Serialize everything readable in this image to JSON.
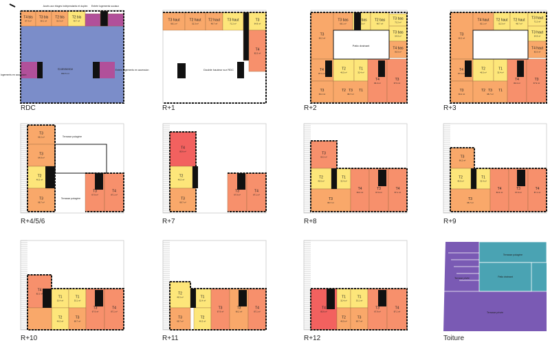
{
  "colors": {
    "orange": "#f9a86a",
    "salmon": "#f7906c",
    "yellow": "#fde67a",
    "red": "#f2615f",
    "blue": "#7b8dc9",
    "magenta": "#b1509a",
    "black": "#111111",
    "purple": "#7a5ab4",
    "teal": "#4aa3b3",
    "frame": "#c8c8c8"
  },
  "levels": [
    {
      "id": "rdc",
      "label": "RDC"
    },
    {
      "id": "r1",
      "label": "R+1"
    },
    {
      "id": "r2",
      "label": "R+2"
    },
    {
      "id": "r3",
      "label": "R+3"
    },
    {
      "id": "r456",
      "label": "R+4/5/6"
    },
    {
      "id": "r7",
      "label": "R+7"
    },
    {
      "id": "r8",
      "label": "R+8"
    },
    {
      "id": "r9",
      "label": "R+9"
    },
    {
      "id": "r10",
      "label": "R+10"
    },
    {
      "id": "r11",
      "label": "R+11"
    },
    {
      "id": "r12",
      "label": "R+12"
    },
    {
      "id": "toit",
      "label": "Toiture"
    }
  ],
  "rdc": {
    "annotations": {
      "top": "Accès aux étages indépendants et duplex",
      "top_right": "Entrée logements sociaux",
      "left": "Entrée logements en accession",
      "right": "Entrée logements en accession",
      "center": "Commerce",
      "center_area": "802.5 m²"
    },
    "units": [
      {
        "type": "T4 bis",
        "area": "87.4 m²"
      },
      {
        "type": "T3 bis",
        "area": "68.1 m²"
      },
      {
        "type": "T2 bis",
        "area": "52.3 m²"
      },
      {
        "type": "T2 bis",
        "area": "48.7 m²"
      }
    ]
  },
  "r1": {
    "center": "Double hauteur sur RDC",
    "units": [
      {
        "type": "T3 haut",
        "area": "68.1 m²"
      },
      {
        "type": "T2 haut",
        "area": "52.3 m²"
      },
      {
        "type": "T2 haut",
        "area": "48.7 m²"
      },
      {
        "type": "T3 haut",
        "area": "71.2 m²"
      },
      {
        "type": "T3",
        "area": "64.8 m²"
      },
      {
        "type": "T4",
        "area": "82.5 m²"
      }
    ]
  },
  "r2": {
    "center": "Patio drainant",
    "units": [
      {
        "type": "T3",
        "area": "66.2 m²"
      },
      {
        "type": "T3 bas",
        "area": "68.1 m²"
      },
      {
        "type": "T2 bas",
        "area": "52.3 m²"
      },
      {
        "type": "T2 bas",
        "area": "48.7 m²"
      },
      {
        "type": "T3 bas",
        "area": "71.2 m²"
      },
      {
        "type": "T3 bas",
        "area": "64.8 m²"
      },
      {
        "type": "T4 bas",
        "area": "82.5 m²"
      },
      {
        "type": "T3",
        "area": "66.2 m²"
      },
      {
        "type": "T2",
        "area": "46.5 m²"
      },
      {
        "type": "T1",
        "area": "32.4 m²"
      },
      {
        "type": "T3",
        "area": "68.7 m²"
      },
      {
        "type": "T4",
        "area": "84.3 m²"
      },
      {
        "type": "T3",
        "area": "67.9 m²"
      },
      {
        "type": "T4",
        "area": "87.1 m²"
      },
      {
        "type": "T2",
        "area": "49.3 m²"
      },
      {
        "type": "T1",
        "area": "33.1 m²"
      }
    ]
  },
  "r3": {
    "units": [
      {
        "type": "T3",
        "area": "66.2 m²"
      },
      {
        "type": "T4 haut",
        "area": "82.1 m²"
      },
      {
        "type": "T2 haut",
        "area": "52.3 m²"
      },
      {
        "type": "T2 haut",
        "area": "48.7 m²"
      },
      {
        "type": "T3 haut",
        "area": "71.2 m²"
      },
      {
        "type": "T3 haut",
        "area": "64.8 m²"
      },
      {
        "type": "T4 haut",
        "area": "82.5 m²"
      },
      {
        "type": "T3",
        "area": "66.2 m²"
      },
      {
        "type": "T2",
        "area": "46.5 m²"
      },
      {
        "type": "T1",
        "area": "32.4 m²"
      },
      {
        "type": "T3",
        "area": "68.7 m²"
      },
      {
        "type": "T4",
        "area": "84.3 m²"
      },
      {
        "type": "T3",
        "area": "67.9 m²"
      },
      {
        "type": "T4",
        "area": "87.1 m²"
      },
      {
        "type": "T2",
        "area": "49.3 m²"
      },
      {
        "type": "T1",
        "area": "33.1 m²"
      }
    ]
  },
  "r456": {
    "terrace_top": "Terrasse potagère",
    "terrace_mid": "Terrasse potagère",
    "units": [
      {
        "type": "T3",
        "area": "66.2 m²"
      },
      {
        "type": "T3",
        "area": "64.8 m²"
      },
      {
        "type": "T2",
        "area": "46.5 m²"
      },
      {
        "type": "T3",
        "area": "68.7 m²"
      },
      {
        "type": "T3",
        "area": "67.9 m²"
      },
      {
        "type": "T4",
        "area": "87.1 m²"
      }
    ]
  },
  "r7": {
    "units": [
      {
        "type": "T4",
        "area": "85.6 m²"
      },
      {
        "type": "T2",
        "area": "46.5 m²"
      },
      {
        "type": "T3",
        "area": "68.7 m²"
      },
      {
        "type": "T3",
        "area": "67.9 m²"
      },
      {
        "type": "T4",
        "area": "87.1 m²"
      }
    ]
  },
  "r8": {
    "units": [
      {
        "type": "T3",
        "area": "66.2 m²"
      },
      {
        "type": "T2",
        "area": "46.5 m²"
      },
      {
        "type": "T1",
        "area": "32.4 m²"
      },
      {
        "type": "T3",
        "area": "68.7 m²"
      },
      {
        "type": "T4",
        "area": "84.3 m²"
      },
      {
        "type": "T3",
        "area": "67.9 m²"
      },
      {
        "type": "T4",
        "area": "87.1 m²"
      }
    ]
  },
  "r9": {
    "units": [
      {
        "type": "T3",
        "area": "66.2 m²"
      },
      {
        "type": "T2",
        "area": "46.5 m²"
      },
      {
        "type": "T1",
        "area": "32.4 m²"
      },
      {
        "type": "T3",
        "area": "68.7 m²"
      },
      {
        "type": "T4",
        "area": "84.3 m²"
      },
      {
        "type": "T3",
        "area": "67.9 m²"
      },
      {
        "type": "T4",
        "area": "87.1 m²"
      }
    ]
  },
  "r10": {
    "units": [
      {
        "type": "T4",
        "area": "82.2 m²"
      },
      {
        "type": "T1",
        "area": "32.4 m²"
      },
      {
        "type": "T2",
        "area": "46.5 m²"
      },
      {
        "type": "T1",
        "area": "33.1 m²"
      },
      {
        "type": "T3",
        "area": "68.7 m²"
      },
      {
        "type": "T3",
        "area": "67.9 m²"
      },
      {
        "type": "T4",
        "area": "87.1 m²"
      }
    ]
  },
  "r11": {
    "units": [
      {
        "type": "T2",
        "area": "46.5 m²"
      },
      {
        "type": "T3",
        "area": "68.7 m²"
      },
      {
        "type": "T1",
        "area": "32.4 m²"
      },
      {
        "type": "T2",
        "area": "49.3 m²"
      },
      {
        "type": "T3",
        "area": "67.9 m²"
      },
      {
        "type": "T3",
        "area": "66.2 m²"
      },
      {
        "type": "T4",
        "area": "87.1 m²"
      }
    ]
  },
  "r12": {
    "units": [
      {
        "type": "T4",
        "area": "85.6 m²"
      },
      {
        "type": "T1",
        "area": "32.4 m²"
      },
      {
        "type": "T2",
        "area": "46.5 m²"
      },
      {
        "type": "T1",
        "area": "33.1 m²"
      },
      {
        "type": "T3",
        "area": "68.7 m²"
      },
      {
        "type": "T3",
        "area": "67.9 m²"
      },
      {
        "type": "T4",
        "area": "87.1 m²"
      }
    ]
  },
  "toit": {
    "terrace_potagere": "Terrasse potagère",
    "patio": "Patio drainant",
    "privee_1": "Terrasse privée",
    "privee_2": "Terrasse privée"
  }
}
